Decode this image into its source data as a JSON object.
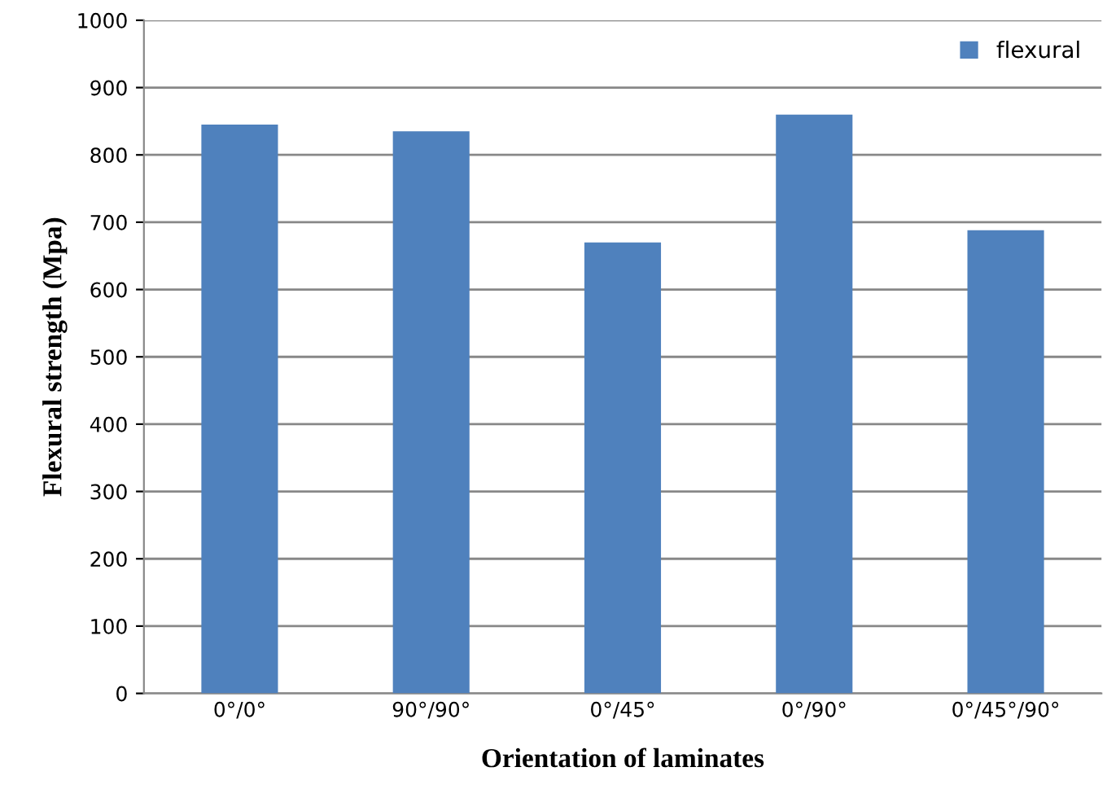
{
  "chart_data": {
    "type": "bar",
    "xlabel": "Orientation of laminates",
    "ylabel": "Flexural strength (Mpa)",
    "categories": [
      "0°/0°",
      "90°/90°",
      "0°/45°",
      "0°/90°",
      "0°/45°/90°"
    ],
    "series": [
      {
        "name": "flexural",
        "color": "#4f81bd",
        "values": [
          845,
          835,
          670,
          860,
          688
        ]
      }
    ],
    "ylim": [
      0,
      1000
    ],
    "yticks": [
      0,
      100,
      200,
      300,
      400,
      500,
      600,
      700,
      800,
      900,
      1000
    ],
    "grid": "y",
    "legend": "top right"
  }
}
